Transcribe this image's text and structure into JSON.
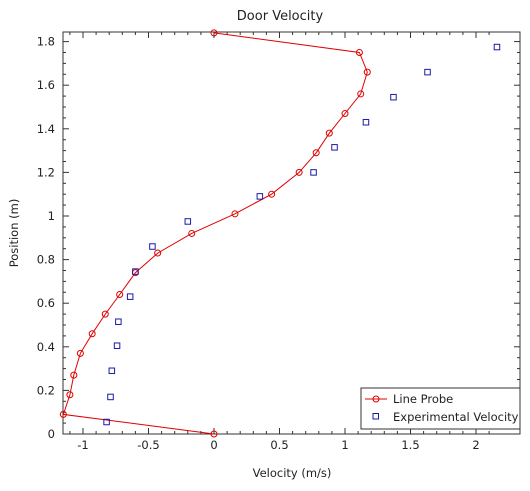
{
  "chart_data": {
    "type": "line",
    "title": "Door Velocity",
    "xlabel": "Velocity (m/s)",
    "ylabel": "Position (m)",
    "xlim": [
      -1.15,
      2.2
    ],
    "ylim": [
      0,
      1.85
    ],
    "xticks": [
      -1,
      -0.5,
      0,
      0.5,
      1,
      1.5,
      2
    ],
    "xtick_labels": [
      "-1",
      "-0.5",
      "0",
      "0.5",
      "1",
      "1.5",
      "2"
    ],
    "yticks": [
      0,
      0.2,
      0.4,
      0.6,
      0.8,
      1,
      1.2,
      1.4,
      1.6,
      1.8
    ],
    "ytick_labels": [
      "0",
      "0.2",
      "0.4",
      "0.6",
      "0.8",
      "1",
      "1.2",
      "1.4",
      "1.6",
      "1.8"
    ],
    "grid": false,
    "legend_position": "bottom-right",
    "series": [
      {
        "name": "Line Probe",
        "style": "line-circle",
        "color": "#e00000",
        "x": [
          0.0,
          -1.15,
          -1.1,
          -1.07,
          -1.02,
          -0.93,
          -0.83,
          -0.72,
          -0.6,
          -0.43,
          -0.17,
          0.16,
          0.44,
          0.65,
          0.78,
          0.88,
          1.0,
          1.12,
          1.17,
          1.11,
          0.0
        ],
        "y": [
          0.0,
          0.09,
          0.18,
          0.27,
          0.37,
          0.46,
          0.55,
          0.64,
          0.74,
          0.83,
          0.92,
          1.01,
          1.1,
          1.2,
          1.29,
          1.38,
          1.47,
          1.56,
          1.66,
          1.75,
          1.84
        ]
      },
      {
        "name": "Experimental Velocity",
        "style": "square-marker",
        "color": "#1a1aa8",
        "x": [
          -0.82,
          -0.79,
          -0.78,
          -0.74,
          -0.73,
          -0.64,
          -0.6,
          -0.47,
          -0.2,
          0.35,
          0.76,
          0.92,
          1.16,
          1.37,
          1.63,
          2.16
        ],
        "y": [
          0.055,
          0.17,
          0.29,
          0.405,
          0.515,
          0.63,
          0.745,
          0.86,
          0.975,
          1.09,
          1.2,
          1.315,
          1.43,
          1.545,
          1.66,
          1.775
        ]
      }
    ]
  }
}
